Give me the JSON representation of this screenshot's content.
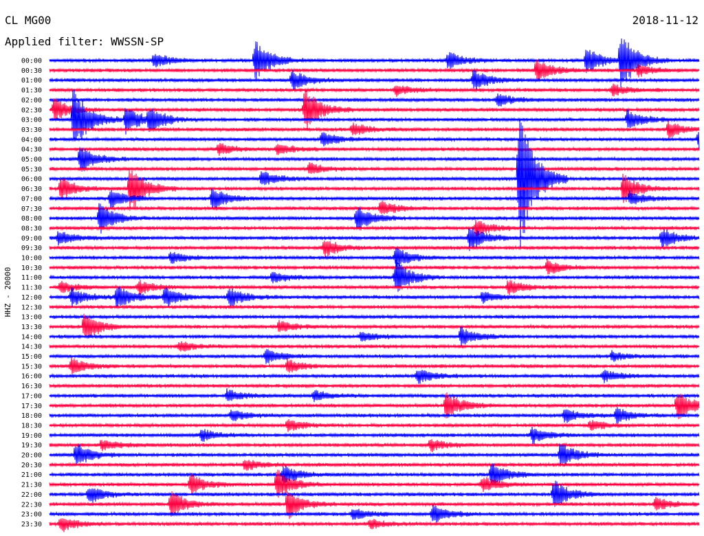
{
  "header": {
    "station": "CL MG00",
    "date": "2018-11-12",
    "filter_label": "Applied filter: WWSSN-SP"
  },
  "chart_data": {
    "type": "line",
    "title": "CL MG00",
    "subtitle": "Applied filter: WWSSN-SP",
    "ylabel": "HHZ - 20000",
    "xlabel": "",
    "row_labels": [
      "00:00",
      "00:30",
      "01:00",
      "01:30",
      "02:00",
      "02:30",
      "03:00",
      "03:30",
      "04:00",
      "04:30",
      "05:00",
      "05:30",
      "06:00",
      "06:30",
      "07:00",
      "07:30",
      "08:00",
      "08:30",
      "09:00",
      "09:30",
      "10:00",
      "10:30",
      "11:00",
      "11:30",
      "12:00",
      "12:30",
      "13:00",
      "13:30",
      "14:00",
      "14:30",
      "15:00",
      "15:30",
      "16:00",
      "16:30",
      "17:00",
      "17:30",
      "18:00",
      "18:30",
      "19:00",
      "19:30",
      "20:00",
      "20:30",
      "21:00",
      "21:30",
      "22:00",
      "22:30",
      "23:00",
      "23:30"
    ],
    "x_range_minutes": [
      0,
      30
    ],
    "trace_colors": [
      "#0000ff",
      "#ff0040"
    ],
    "events": [
      {
        "row": 0,
        "minute": 4.8,
        "amplitude": 0.8
      },
      {
        "row": 0,
        "minute": 9.5,
        "amplitude": 2.2
      },
      {
        "row": 0,
        "minute": 18.4,
        "amplitude": 0.9
      },
      {
        "row": 0,
        "minute": 24.8,
        "amplitude": 1.4
      },
      {
        "row": 0,
        "minute": 26.4,
        "amplitude": 3.0
      },
      {
        "row": 1,
        "minute": 22.5,
        "amplitude": 1.3
      },
      {
        "row": 1,
        "minute": 27.2,
        "amplitude": 0.6
      },
      {
        "row": 2,
        "minute": 11.2,
        "amplitude": 1.0
      },
      {
        "row": 2,
        "minute": 19.6,
        "amplitude": 1.1
      },
      {
        "row": 3,
        "minute": 16.0,
        "amplitude": 0.6
      },
      {
        "row": 3,
        "minute": 26.0,
        "amplitude": 0.6
      },
      {
        "row": 4,
        "minute": 20.7,
        "amplitude": 0.7
      },
      {
        "row": 5,
        "minute": 0.2,
        "amplitude": 1.2
      },
      {
        "row": 5,
        "minute": 11.8,
        "amplitude": 2.2
      },
      {
        "row": 6,
        "minute": 1.1,
        "amplitude": 3.5
      },
      {
        "row": 6,
        "minute": 3.5,
        "amplitude": 1.5
      },
      {
        "row": 6,
        "minute": 4.6,
        "amplitude": 1.2
      },
      {
        "row": 6,
        "minute": 26.7,
        "amplitude": 1.0
      },
      {
        "row": 7,
        "minute": 14.0,
        "amplitude": 0.7
      },
      {
        "row": 7,
        "minute": 28.6,
        "amplitude": 0.8
      },
      {
        "row": 8,
        "minute": 12.6,
        "amplitude": 0.7
      },
      {
        "row": 8,
        "minute": 30.0,
        "amplitude": 1.0
      },
      {
        "row": 9,
        "minute": 7.8,
        "amplitude": 0.6
      },
      {
        "row": 9,
        "minute": 10.5,
        "amplitude": 0.6
      },
      {
        "row": 10,
        "minute": 1.4,
        "amplitude": 1.5
      },
      {
        "row": 11,
        "minute": 12.0,
        "amplitude": 0.6
      },
      {
        "row": 12,
        "minute": 9.8,
        "amplitude": 0.8
      },
      {
        "row": 12,
        "minute": 21.7,
        "amplitude": 8.0
      },
      {
        "row": 13,
        "minute": 0.5,
        "amplitude": 1.2
      },
      {
        "row": 13,
        "minute": 3.7,
        "amplitude": 2.5
      },
      {
        "row": 13,
        "minute": 26.5,
        "amplitude": 1.5
      },
      {
        "row": 14,
        "minute": 2.8,
        "amplitude": 1.0
      },
      {
        "row": 14,
        "minute": 7.5,
        "amplitude": 1.2
      },
      {
        "row": 14,
        "minute": 26.8,
        "amplitude": 0.7
      },
      {
        "row": 15,
        "minute": 15.3,
        "amplitude": 0.8
      },
      {
        "row": 16,
        "minute": 2.3,
        "amplitude": 1.6
      },
      {
        "row": 16,
        "minute": 14.2,
        "amplitude": 1.3
      },
      {
        "row": 17,
        "minute": 19.7,
        "amplitude": 0.8
      },
      {
        "row": 18,
        "minute": 0.4,
        "amplitude": 0.8
      },
      {
        "row": 18,
        "minute": 19.4,
        "amplitude": 1.3
      },
      {
        "row": 18,
        "minute": 28.3,
        "amplitude": 1.0
      },
      {
        "row": 19,
        "minute": 12.7,
        "amplitude": 0.9
      },
      {
        "row": 20,
        "minute": 16.0,
        "amplitude": 1.0
      },
      {
        "row": 20,
        "minute": 5.6,
        "amplitude": 0.6
      },
      {
        "row": 21,
        "minute": 23.0,
        "amplitude": 0.7
      },
      {
        "row": 22,
        "minute": 16.0,
        "amplitude": 1.8
      },
      {
        "row": 22,
        "minute": 10.3,
        "amplitude": 0.6
      },
      {
        "row": 23,
        "minute": 0.5,
        "amplitude": 0.6
      },
      {
        "row": 23,
        "minute": 4.1,
        "amplitude": 0.7
      },
      {
        "row": 23,
        "minute": 21.2,
        "amplitude": 0.8
      },
      {
        "row": 24,
        "minute": 1.0,
        "amplitude": 1.0
      },
      {
        "row": 24,
        "minute": 3.1,
        "amplitude": 1.2
      },
      {
        "row": 24,
        "minute": 5.3,
        "amplitude": 1.0
      },
      {
        "row": 24,
        "minute": 8.3,
        "amplitude": 1.0
      },
      {
        "row": 24,
        "minute": 20.0,
        "amplitude": 0.6
      },
      {
        "row": 27,
        "minute": 1.6,
        "amplitude": 1.5
      },
      {
        "row": 27,
        "minute": 10.6,
        "amplitude": 0.6
      },
      {
        "row": 28,
        "minute": 19.0,
        "amplitude": 1.0
      },
      {
        "row": 28,
        "minute": 14.4,
        "amplitude": 0.5
      },
      {
        "row": 29,
        "minute": 6.0,
        "amplitude": 0.5
      },
      {
        "row": 30,
        "minute": 10.0,
        "amplitude": 0.7
      },
      {
        "row": 30,
        "minute": 26.0,
        "amplitude": 0.5
      },
      {
        "row": 31,
        "minute": 11.0,
        "amplitude": 0.7
      },
      {
        "row": 31,
        "minute": 1.0,
        "amplitude": 0.8
      },
      {
        "row": 32,
        "minute": 17.0,
        "amplitude": 0.8
      },
      {
        "row": 32,
        "minute": 25.6,
        "amplitude": 0.6
      },
      {
        "row": 34,
        "minute": 8.2,
        "amplitude": 0.6
      },
      {
        "row": 34,
        "minute": 12.2,
        "amplitude": 0.5
      },
      {
        "row": 35,
        "minute": 18.3,
        "amplitude": 1.5
      },
      {
        "row": 35,
        "minute": 29.0,
        "amplitude": 1.5
      },
      {
        "row": 36,
        "minute": 8.4,
        "amplitude": 0.6
      },
      {
        "row": 36,
        "minute": 23.8,
        "amplitude": 0.7
      },
      {
        "row": 36,
        "minute": 26.2,
        "amplitude": 0.8
      },
      {
        "row": 37,
        "minute": 11.0,
        "amplitude": 0.6
      },
      {
        "row": 37,
        "minute": 25.0,
        "amplitude": 0.5
      },
      {
        "row": 38,
        "minute": 7.0,
        "amplitude": 0.6
      },
      {
        "row": 38,
        "minute": 22.3,
        "amplitude": 0.8
      },
      {
        "row": 39,
        "minute": 2.4,
        "amplitude": 0.6
      },
      {
        "row": 39,
        "minute": 17.6,
        "amplitude": 0.6
      },
      {
        "row": 40,
        "minute": 1.2,
        "amplitude": 1.2
      },
      {
        "row": 40,
        "minute": 23.6,
        "amplitude": 1.3
      },
      {
        "row": 41,
        "minute": 9.0,
        "amplitude": 0.6
      },
      {
        "row": 42,
        "minute": 20.4,
        "amplitude": 1.3
      },
      {
        "row": 42,
        "minute": 10.8,
        "amplitude": 1.0
      },
      {
        "row": 43,
        "minute": 6.5,
        "amplitude": 1.0
      },
      {
        "row": 43,
        "minute": 10.5,
        "amplitude": 1.5
      },
      {
        "row": 43,
        "minute": 20.0,
        "amplitude": 0.8
      },
      {
        "row": 44,
        "minute": 1.8,
        "amplitude": 0.9
      },
      {
        "row": 44,
        "minute": 23.3,
        "amplitude": 1.5
      },
      {
        "row": 45,
        "minute": 5.6,
        "amplitude": 1.3
      },
      {
        "row": 45,
        "minute": 11.0,
        "amplitude": 1.5
      },
      {
        "row": 45,
        "minute": 28.0,
        "amplitude": 0.7
      },
      {
        "row": 46,
        "minute": 14.0,
        "amplitude": 0.6
      },
      {
        "row": 46,
        "minute": 17.7,
        "amplitude": 1.0
      },
      {
        "row": 47,
        "minute": 0.5,
        "amplitude": 0.8
      },
      {
        "row": 47,
        "minute": 14.8,
        "amplitude": 0.5
      }
    ]
  }
}
